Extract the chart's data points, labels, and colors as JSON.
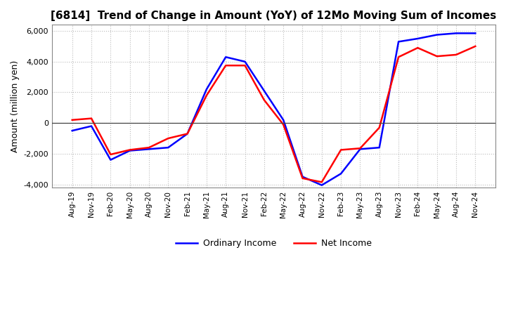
{
  "title": "[6814]  Trend of Change in Amount (YoY) of 12Mo Moving Sum of Incomes",
  "ylabel": "Amount (million yen)",
  "ylim": [
    -4200,
    6400
  ],
  "yticks": [
    -4000,
    -2000,
    0,
    2000,
    4000,
    6000
  ],
  "background_color": "#ffffff",
  "grid_color": "#bbbbbb",
  "ordinary_color": "#0000ff",
  "net_color": "#ff0000",
  "x_labels": [
    "Aug-19",
    "Nov-19",
    "Feb-20",
    "May-20",
    "Aug-20",
    "Nov-20",
    "Feb-21",
    "May-21",
    "Aug-21",
    "Nov-21",
    "Feb-22",
    "May-22",
    "Aug-22",
    "Nov-22",
    "Feb-23",
    "May-23",
    "Aug-23",
    "Nov-23",
    "Feb-24",
    "May-24",
    "Aug-24",
    "Nov-24"
  ],
  "ordinary_income": [
    -500,
    -200,
    -2400,
    -1800,
    -1700,
    -1600,
    -700,
    2200,
    4300,
    4000,
    2100,
    200,
    -3500,
    -4050,
    -3300,
    -1700,
    -1600,
    5300,
    5500,
    5750,
    5850,
    5850
  ],
  "net_income": [
    200,
    300,
    -2050,
    -1750,
    -1600,
    -1000,
    -700,
    1800,
    3750,
    3750,
    1500,
    -100,
    -3600,
    -3850,
    -1750,
    -1650,
    -300,
    4300,
    4900,
    4350,
    4450,
    5000
  ]
}
